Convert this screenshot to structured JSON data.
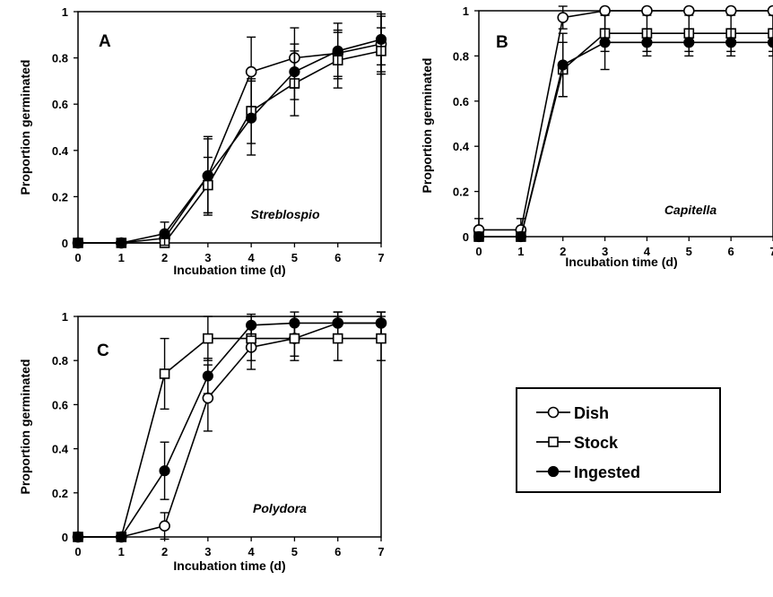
{
  "legend": {
    "entries": [
      {
        "label": "Dish",
        "marker": "open-circle"
      },
      {
        "label": "Stock",
        "marker": "open-square"
      },
      {
        "label": "Ingested",
        "marker": "filled-circle"
      }
    ]
  },
  "chart_data": [
    {
      "type": "line",
      "panel": "A",
      "species": "Streblospio",
      "xlabel": "Incubation time (d)",
      "ylabel": "Proportion germinated",
      "xlim": [
        0,
        7
      ],
      "ylim": [
        0,
        1
      ],
      "xticks": [
        "0",
        "1",
        "2",
        "3",
        "4",
        "5",
        "6",
        "7"
      ],
      "yticks": [
        "0",
        "0.2",
        "0.4",
        "0.6",
        "0.8",
        "1"
      ],
      "x": [
        0,
        1,
        2,
        3,
        4,
        5,
        6,
        7
      ],
      "series": [
        {
          "name": "Dish",
          "values": [
            0,
            0,
            0.02,
            0.29,
            0.74,
            0.8,
            0.82,
            0.86
          ],
          "errors": [
            0,
            0,
            0.01,
            0.16,
            0.15,
            0.13,
            0.1,
            0.12
          ]
        },
        {
          "name": "Stock",
          "values": [
            0,
            0,
            0.0,
            0.25,
            0.57,
            0.69,
            0.79,
            0.83
          ],
          "errors": [
            0,
            0,
            0.01,
            0.12,
            0.14,
            0.14,
            0.12,
            0.1
          ]
        },
        {
          "name": "Ingested",
          "values": [
            0,
            0,
            0.04,
            0.29,
            0.54,
            0.74,
            0.83,
            0.88
          ],
          "errors": [
            0,
            0,
            0.05,
            0.17,
            0.16,
            0.12,
            0.12,
            0.11
          ]
        }
      ]
    },
    {
      "type": "line",
      "panel": "B",
      "species": "Capitella",
      "xlabel": "Incubation time (d)",
      "ylabel": "Proportion germinated",
      "xlim": [
        0,
        7
      ],
      "ylim": [
        0,
        1
      ],
      "xticks": [
        "0",
        "1",
        "2",
        "3",
        "4",
        "5",
        "6",
        "7"
      ],
      "yticks": [
        "0",
        "0.2",
        "0.4",
        "0.6",
        "0.8",
        "1"
      ],
      "x": [
        0,
        1,
        2,
        3,
        4,
        5,
        6,
        7
      ],
      "series": [
        {
          "name": "Dish",
          "values": [
            0.03,
            0.03,
            0.97,
            1.0,
            1.0,
            1.0,
            1.0,
            1.0
          ],
          "errors": [
            0.05,
            0.05,
            0.05,
            0.0,
            0.0,
            0.0,
            0.0,
            0.0
          ]
        },
        {
          "name": "Stock",
          "values": [
            0.0,
            0.0,
            0.74,
            0.9,
            0.9,
            0.9,
            0.9,
            0.9
          ],
          "errors": [
            0.0,
            0.0,
            0.12,
            0.08,
            0.08,
            0.08,
            0.08,
            0.08
          ]
        },
        {
          "name": "Ingested",
          "values": [
            0.0,
            0.0,
            0.76,
            0.86,
            0.86,
            0.86,
            0.86,
            0.86
          ],
          "errors": [
            0.0,
            0.0,
            0.14,
            0.12,
            0.06,
            0.06,
            0.06,
            0.06
          ]
        }
      ]
    },
    {
      "type": "line",
      "panel": "C",
      "species": "Polydora",
      "xlabel": "Incubation time (d)",
      "ylabel": "Proportion germinated",
      "xlim": [
        0,
        7
      ],
      "ylim": [
        0,
        1
      ],
      "xticks": [
        "0",
        "1",
        "2",
        "3",
        "4",
        "5",
        "6",
        "7"
      ],
      "yticks": [
        "0",
        "0.2",
        "0.4",
        "0.6",
        "0.8",
        "1"
      ],
      "x": [
        0,
        1,
        2,
        3,
        4,
        5,
        6,
        7
      ],
      "series": [
        {
          "name": "Dish",
          "values": [
            0,
            0,
            0.05,
            0.63,
            0.86,
            0.9,
            0.97,
            0.97
          ],
          "errors": [
            0,
            0,
            0.06,
            0.15,
            0.1,
            0.08,
            0.05,
            0.05
          ]
        },
        {
          "name": "Stock",
          "values": [
            0,
            0,
            0.74,
            0.9,
            0.9,
            0.9,
            0.9,
            0.9
          ],
          "errors": [
            0,
            0,
            0.16,
            0.1,
            0.1,
            0.1,
            0.1,
            0.1
          ]
        },
        {
          "name": "Ingested",
          "values": [
            0,
            0,
            0.3,
            0.73,
            0.96,
            0.97,
            0.97,
            0.97
          ],
          "errors": [
            0,
            0,
            0.13,
            0.08,
            0.05,
            0.05,
            0.05,
            0.05
          ]
        }
      ]
    }
  ]
}
